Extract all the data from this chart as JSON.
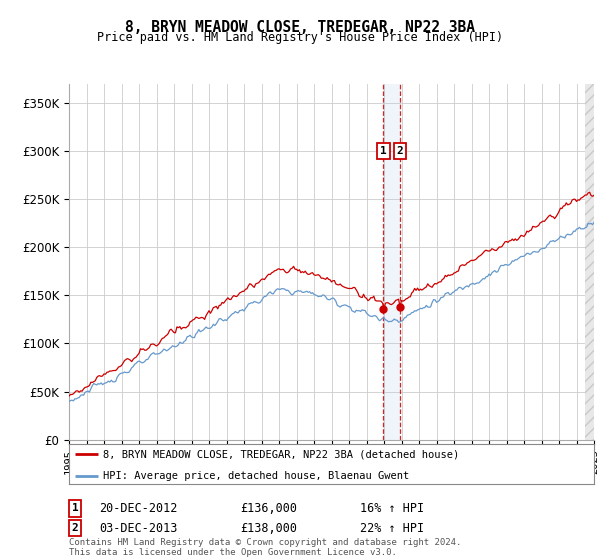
{
  "title": "8, BRYN MEADOW CLOSE, TREDEGAR, NP22 3BA",
  "subtitle": "Price paid vs. HM Land Registry's House Price Index (HPI)",
  "ylim": [
    0,
    370000
  ],
  "yticks": [
    0,
    50000,
    100000,
    150000,
    200000,
    250000,
    300000,
    350000
  ],
  "ytick_labels": [
    "£0",
    "£50K",
    "£100K",
    "£150K",
    "£200K",
    "£250K",
    "£300K",
    "£350K"
  ],
  "x_start_year": 1995,
  "x_end_year": 2025,
  "transaction1_date": 2012.97,
  "transaction1_label": "1",
  "transaction1_price": 136000,
  "transaction1_text": "20-DEC-2012",
  "transaction1_hpi": "16% ↑ HPI",
  "transaction2_date": 2013.92,
  "transaction2_label": "2",
  "transaction2_price": 138000,
  "transaction2_text": "03-DEC-2013",
  "transaction2_hpi": "22% ↑ HPI",
  "red_line_color": "#cc0000",
  "blue_line_color": "#6699cc",
  "background_color": "#ffffff",
  "grid_color": "#cccccc",
  "legend1": "8, BRYN MEADOW CLOSE, TREDEGAR, NP22 3BA (detached house)",
  "legend2": "HPI: Average price, detached house, Blaenau Gwent",
  "footnote": "Contains HM Land Registry data © Crown copyright and database right 2024.\nThis data is licensed under the Open Government Licence v3.0.",
  "fig_width": 6.0,
  "fig_height": 5.6,
  "dpi": 100
}
